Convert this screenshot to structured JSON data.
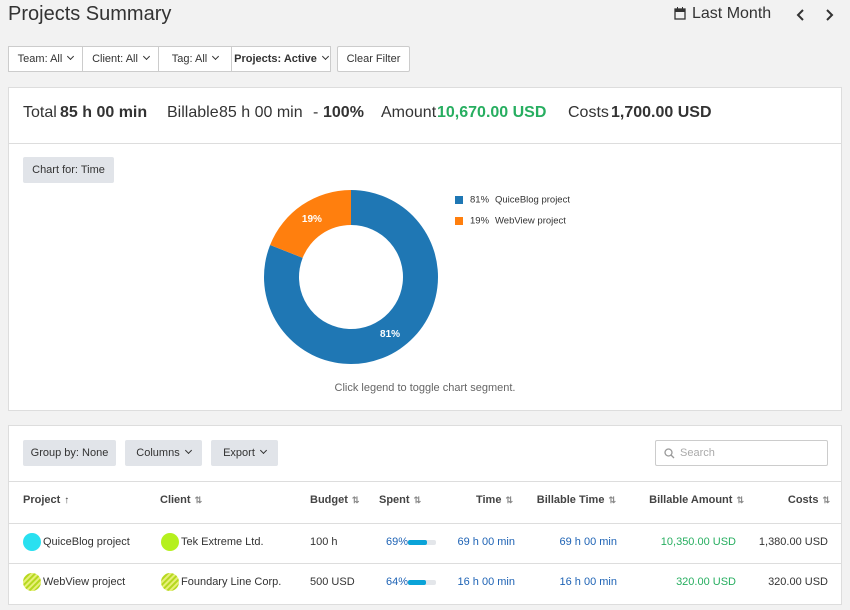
{
  "header": {
    "title": "Projects Summary",
    "period": "Last Month"
  },
  "filters": [
    "Team: All",
    "Client: All",
    "Tag: All",
    "Projects: Active",
    "Clear Filter"
  ],
  "summary": {
    "total_label": "Total",
    "total": "85 h 00 min",
    "billable_label": "Billable",
    "billable": "85 h 00 min",
    "separator": "-",
    "billable_pct": "100%",
    "amount_label": "Amount",
    "amount": "10,670.00 USD",
    "costs_label": "Costs",
    "costs": "1,700.00 USD"
  },
  "chart_button": "Chart for: Time",
  "chart_data": {
    "type": "pie",
    "donut": true,
    "categories": [
      "QuiceBlog project",
      "WebView project"
    ],
    "values": [
      81,
      19
    ],
    "value_labels": [
      "81%",
      "19%"
    ],
    "colors": [
      "#1f77b4",
      "#ff7f0e"
    ]
  },
  "chart_note": "Click legend to toggle chart segment.",
  "toolbar": [
    "Group by: None",
    "Columns",
    "Export"
  ],
  "search_placeholder": "Search",
  "table": {
    "columns": [
      "Project",
      "Client",
      "Budget",
      "Spent",
      "Time",
      "Billable Time",
      "Billable Amount",
      "Costs"
    ],
    "rows": [
      {
        "project": "QuiceBlog project",
        "client": "Tek Extreme Ltd.",
        "budget": "100 h",
        "spent": {
          "value": 69,
          "label": "69%"
        },
        "time": "69 h 00 min",
        "billable_time": "69 h 00 min",
        "billable_amount": "10,350.00 USD",
        "costs": "1,380.00 USD"
      },
      {
        "project": "WebView project",
        "client": "Foundary Line Corp.",
        "budget": "500 USD",
        "spent": {
          "value": 64,
          "label": "64%"
        },
        "time": "16 h 00 min",
        "billable_time": "16 h 00 min",
        "billable_amount": "320.00 USD",
        "costs": "320.00 USD"
      }
    ]
  }
}
